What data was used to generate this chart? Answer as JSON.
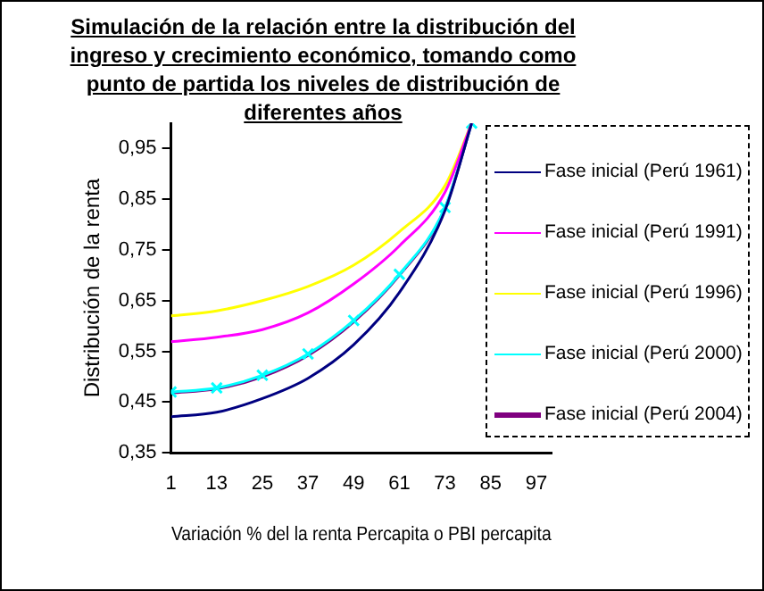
{
  "chart_data": {
    "type": "line",
    "title": "Simulación de la relación entre la distribución del ingreso y crecimiento económico, tomando como punto de partida los niveles de distribución de diferentes años",
    "xlabel": "Variación % del la renta Percapita o PBI percapita",
    "ylabel": "Distribución de la renta",
    "x": [
      1,
      13,
      25,
      37,
      49,
      61,
      73,
      80
    ],
    "xlim": [
      1,
      101
    ],
    "xticks": [
      1,
      13,
      25,
      37,
      49,
      61,
      73,
      85,
      97
    ],
    "ylim": [
      0.35,
      1.0
    ],
    "yticks": [
      {
        "value": 0.35,
        "label": "0,35"
      },
      {
        "value": 0.45,
        "label": "0,45"
      },
      {
        "value": 0.55,
        "label": "0,55"
      },
      {
        "value": 0.65,
        "label": "0,65"
      },
      {
        "value": 0.75,
        "label": "0,75"
      },
      {
        "value": 0.85,
        "label": "0,85"
      },
      {
        "value": 0.95,
        "label": "0,95"
      }
    ],
    "grid": false,
    "legend": "right",
    "series": [
      {
        "name": "Fase inicial (Perú 1961)",
        "color": "#000080",
        "values": [
          0.421,
          0.43,
          0.457,
          0.497,
          0.563,
          0.666,
          0.828,
          1.0
        ]
      },
      {
        "name": "Fase inicial (Perú 1991)",
        "color": "#ff00ff",
        "values": [
          0.569,
          0.578,
          0.593,
          0.626,
          0.683,
          0.758,
          0.864,
          1.0
        ]
      },
      {
        "name": "Fase inicial (Perú 1996)",
        "color": "#ffff00",
        "values": [
          0.62,
          0.63,
          0.65,
          0.678,
          0.72,
          0.786,
          0.877,
          1.0
        ]
      },
      {
        "name": "Fase inicial (Perú 2000)",
        "color": "#00ffff",
        "marker": "cross",
        "values": [
          0.47,
          0.478,
          0.503,
          0.545,
          0.611,
          0.702,
          0.834,
          1.0
        ]
      },
      {
        "name": "Fase inicial (Perú 2004)",
        "color": "#800080",
        "values": [
          0.468,
          0.476,
          0.5,
          0.542,
          0.608,
          0.7,
          0.832,
          1.0
        ]
      }
    ]
  }
}
